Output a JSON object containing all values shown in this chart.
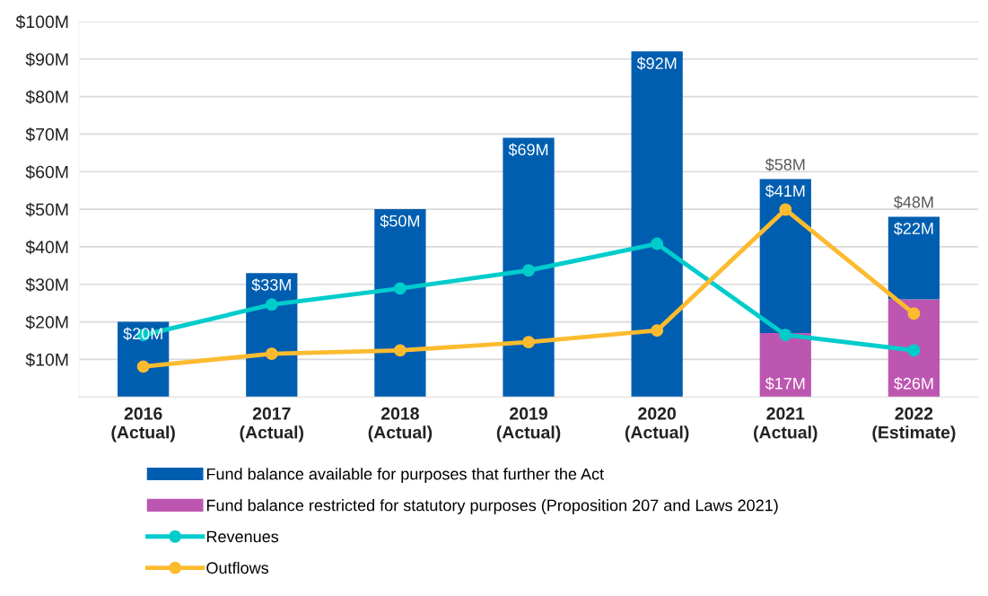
{
  "chart_data": {
    "type": "bar",
    "stacked": true,
    "categories": [
      "2016\n(Actual)",
      "2017\n(Actual)",
      "2018\n(Actual)",
      "2019\n(Actual)",
      "2020\n(Actual)",
      "2021\n(Actual)",
      "2022\n(Estimate)"
    ],
    "series": [
      {
        "name": "Fund balance restricted for statutory purposes (Proposition 207 and Laws 2021)",
        "color": "#bd56b0",
        "values": [
          null,
          null,
          null,
          null,
          null,
          17,
          26
        ],
        "value_labels": [
          null,
          null,
          null,
          null,
          null,
          "$17M",
          "$26M"
        ]
      },
      {
        "name": "Fund balance available for purposes that further the Act",
        "color": "#005eb0",
        "values": [
          20,
          33,
          50,
          69,
          92,
          41,
          22
        ],
        "value_labels": [
          "$20M",
          "$33M",
          "$50M",
          "$69M",
          "$92M",
          "$41M",
          "$22M"
        ]
      },
      {
        "name": "Revenues",
        "type": "line",
        "color": "#00cccc",
        "marker": "circle",
        "values": [
          16.5,
          24.6,
          28.9,
          33.7,
          40.8,
          16.5,
          12.4
        ]
      },
      {
        "name": "Outflows",
        "type": "line",
        "color": "#fcbb2f",
        "marker": "circle",
        "values": [
          8.1,
          11.5,
          12.4,
          14.6,
          17.7,
          49.9,
          22.2
        ]
      }
    ],
    "totals": [
      null,
      null,
      null,
      null,
      null,
      "$58M",
      "$48M"
    ],
    "ylim": [
      0,
      100
    ],
    "yticks": [
      {
        "value": 10,
        "label": "$10M"
      },
      {
        "value": 20,
        "label": "$20M"
      },
      {
        "value": 30,
        "label": "$30M"
      },
      {
        "value": 40,
        "label": "$40M"
      },
      {
        "value": 50,
        "label": "$50M"
      },
      {
        "value": 60,
        "label": "$60M"
      },
      {
        "value": 70,
        "label": "$70M"
      },
      {
        "value": 80,
        "label": "$80M"
      },
      {
        "value": 90,
        "label": "$90M"
      },
      {
        "value": 100,
        "label": "$100M"
      }
    ],
    "grid": "y",
    "legend": "bottom"
  }
}
